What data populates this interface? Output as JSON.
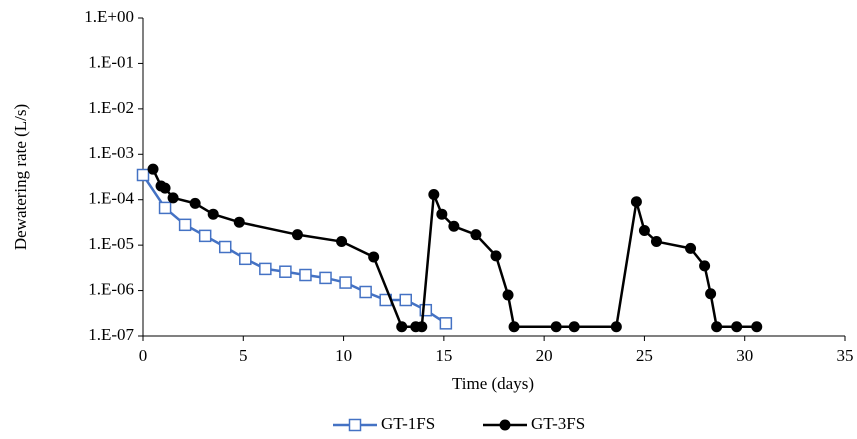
{
  "chart_data": {
    "type": "line",
    "log_y": true,
    "grid": false,
    "legend": "bottom",
    "x_label": "Time (days)",
    "y_label": "Dewatering rate (L/s)",
    "xlim": [
      0,
      35
    ],
    "xticks": [
      0,
      5,
      10,
      15,
      20,
      25,
      30,
      35
    ],
    "ylim": [
      1e-07,
      1
    ],
    "yticks": [
      {
        "value": 1e-07,
        "label": "1.E-07"
      },
      {
        "value": 1e-06,
        "label": "1.E-06"
      },
      {
        "value": 1e-05,
        "label": "1.E-05"
      },
      {
        "value": 0.0001,
        "label": "1.E-04"
      },
      {
        "value": 0.001,
        "label": "1.E-03"
      },
      {
        "value": 0.01,
        "label": "1.E-02"
      },
      {
        "value": 0.1,
        "label": "1.E-01"
      },
      {
        "value": 1,
        "label": "1.E+00"
      }
    ],
    "series": [
      {
        "name": "GT-1FS",
        "color": "#4472c4",
        "marker": "square",
        "x": [
          0,
          1.1,
          2.1,
          3.1,
          4.1,
          5.1,
          6.1,
          7.1,
          8.1,
          9.1,
          10.1,
          11.1,
          12.1,
          13.1,
          14.1,
          15.1
        ],
        "values": [
          0.00035,
          6.6e-05,
          2.8e-05,
          1.6e-05,
          9.1e-06,
          5e-06,
          3e-06,
          2.6e-06,
          2.2e-06,
          1.9e-06,
          1.5e-06,
          9.3e-07,
          6.2e-07,
          6.2e-07,
          3.7e-07,
          1.9e-07
        ]
      },
      {
        "name": "GT-3FS",
        "color": "#000000",
        "marker": "circle",
        "x": [
          0.5,
          0.9,
          1.1,
          1.5,
          2.6,
          3.5,
          4.8,
          7.7,
          9.9,
          11.5,
          12.9,
          13.6,
          13.9,
          14.5,
          14.9,
          15.5,
          16.6,
          17.6,
          18.2,
          18.5,
          20.6,
          21.5,
          23.6,
          24.6,
          25.0,
          25.6,
          27.3,
          28.0,
          28.3,
          28.6,
          29.6,
          30.6
        ],
        "values": [
          0.00047,
          0.0002,
          0.00018,
          0.00011,
          8.3e-05,
          4.8e-05,
          3.2e-05,
          1.7e-05,
          1.2e-05,
          5.5e-06,
          1.6e-07,
          1.6e-07,
          1.6e-07,
          0.00013,
          4.8e-05,
          2.6e-05,
          1.7e-05,
          5.8e-06,
          8e-07,
          1.6e-07,
          1.6e-07,
          1.6e-07,
          1.6e-07,
          9e-05,
          2.1e-05,
          1.2e-05,
          8.5e-06,
          3.5e-06,
          8.5e-07,
          1.6e-07,
          1.6e-07,
          1.6e-07
        ]
      }
    ]
  }
}
